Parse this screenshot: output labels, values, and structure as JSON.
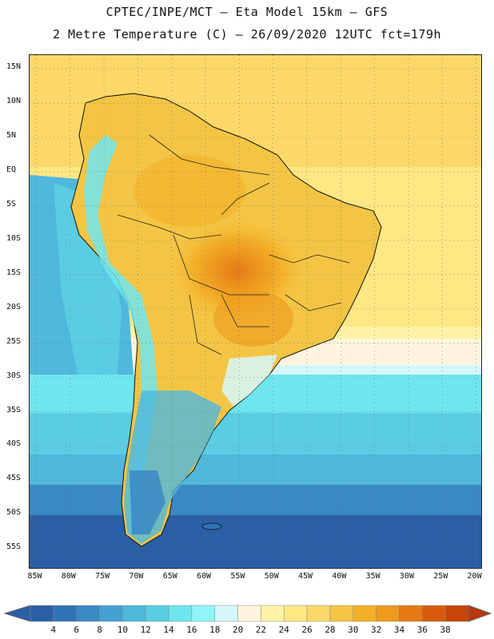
{
  "header": {
    "line1": "CPTEC/INPE/MCT –  Eta Model 15km – GFS",
    "line2": "2 Metre Temperature (C) – 26/09/2020 12UTC fct=179h"
  },
  "map": {
    "lat_range": [
      -58,
      17
    ],
    "lon_range": [
      -86,
      -19
    ],
    "lat_ticks": [
      "15N",
      "10N",
      "5N",
      "EQ",
      "5S",
      "10S",
      "15S",
      "20S",
      "25S",
      "30S",
      "35S",
      "40S",
      "45S",
      "50S",
      "55S"
    ],
    "lon_ticks": [
      "85W",
      "80W",
      "75W",
      "70W",
      "65W",
      "60W",
      "55W",
      "50W",
      "45W",
      "40W",
      "35W",
      "30W",
      "25W",
      "20W"
    ],
    "gridlines": "dotted"
  },
  "colorbar": {
    "labels": [
      "4",
      "6",
      "8",
      "10",
      "12",
      "14",
      "16",
      "18",
      "20",
      "22",
      "24",
      "26",
      "28",
      "30",
      "32",
      "34",
      "36",
      "38"
    ],
    "colors": [
      "#2a5fa6",
      "#2f72b6",
      "#3a88c4",
      "#43a1d2",
      "#4fb8dc",
      "#5acde3",
      "#6fe6ef",
      "#8ff5f8",
      "#d5f7fb",
      "#fff5df",
      "#fff3a6",
      "#ffe783",
      "#fbd867",
      "#f4c544",
      "#f3b027",
      "#ee9a1d",
      "#e57a14",
      "#d95a0c",
      "#c94409"
    ],
    "low_arrow_color": "#2a5fa6",
    "high_arrow_color": "#b8380c"
  }
}
